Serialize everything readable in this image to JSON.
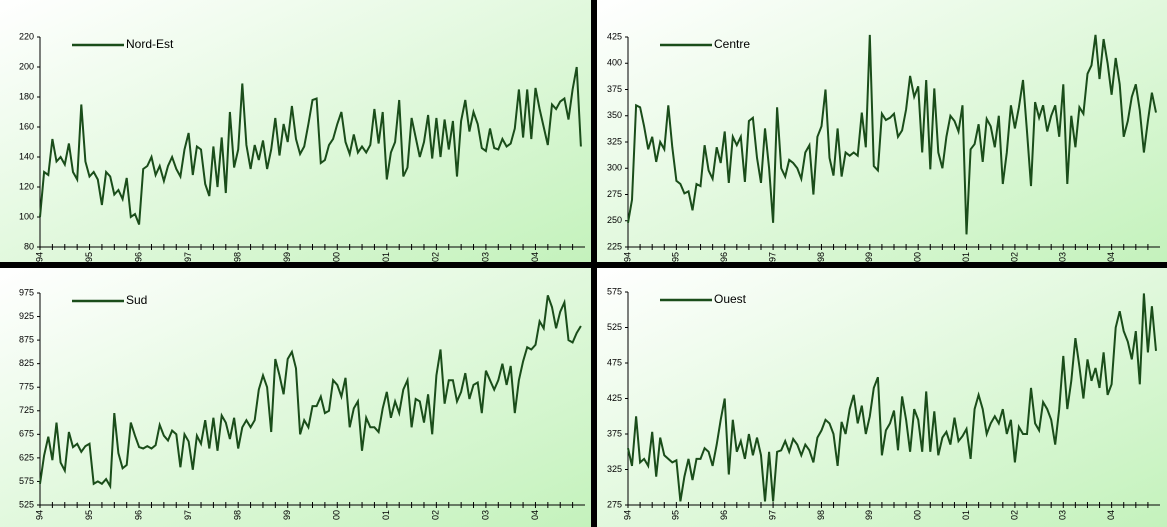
{
  "chart_data": [
    {
      "type": "line",
      "categories": [
        "94",
        null,
        null,
        null,
        null,
        null,
        null,
        null,
        null,
        null,
        null,
        null,
        "95",
        null,
        null,
        null,
        null,
        null,
        null,
        null,
        null,
        null,
        null,
        null,
        "96",
        null,
        null,
        null,
        null,
        null,
        null,
        null,
        null,
        null,
        null,
        null,
        "97",
        null,
        null,
        null,
        null,
        null,
        null,
        null,
        null,
        null,
        null,
        null,
        "98",
        null,
        null,
        null,
        null,
        null,
        null,
        null,
        null,
        null,
        null,
        null,
        "99",
        null,
        null,
        null,
        null,
        null,
        null,
        null,
        null,
        null,
        null,
        null,
        "00",
        null,
        null,
        null,
        null,
        null,
        null,
        null,
        null,
        null,
        null,
        null,
        "01",
        null,
        null,
        null,
        null,
        null,
        null,
        null,
        null,
        null,
        null,
        null,
        "02",
        null,
        null,
        null,
        null,
        null,
        null,
        null,
        null,
        null,
        null,
        null,
        "03",
        null,
        null,
        null,
        null,
        null,
        null,
        null,
        null,
        null,
        null,
        null,
        "04",
        null,
        null,
        null,
        null,
        null,
        null,
        null,
        null,
        null,
        null,
        null
      ],
      "series": [
        {
          "name": "Nord-Est",
          "color": "#1a4d1a",
          "values": [
            100,
            130,
            128,
            152,
            137,
            140,
            135,
            149,
            130,
            125,
            175,
            137,
            127,
            130,
            125,
            108,
            130,
            127,
            115,
            118,
            112,
            126,
            100,
            102,
            95,
            132,
            134,
            140,
            128,
            134,
            124,
            134,
            140,
            132,
            127,
            145,
            156,
            128,
            147,
            145,
            122,
            114,
            147,
            120,
            153,
            116,
            170,
            133,
            145,
            189,
            148,
            132,
            148,
            138,
            151,
            132,
            145,
            166,
            141,
            162,
            150,
            174,
            152,
            142,
            147,
            162,
            178,
            179,
            136,
            138,
            148,
            152,
            162,
            170,
            150,
            142,
            155,
            143,
            147,
            143,
            148,
            172,
            149,
            170,
            125,
            143,
            150,
            178,
            127,
            133,
            166,
            153,
            140,
            150,
            168,
            139,
            166,
            140,
            165,
            145,
            164,
            127,
            164,
            178,
            157,
            170,
            162,
            146,
            144,
            159,
            146,
            145,
            152,
            147,
            149,
            159,
            185,
            153,
            185,
            152,
            186,
            172,
            160,
            148,
            175,
            172,
            177,
            179,
            165,
            185,
            200,
            147
          ]
        }
      ],
      "ylim": [
        80,
        220
      ],
      "yticks": [
        80,
        100,
        120,
        140,
        160,
        180,
        200,
        220
      ]
    },
    {
      "type": "line",
      "categories": [
        "94",
        null,
        null,
        null,
        null,
        null,
        null,
        null,
        null,
        null,
        null,
        null,
        "95",
        null,
        null,
        null,
        null,
        null,
        null,
        null,
        null,
        null,
        null,
        null,
        "96",
        null,
        null,
        null,
        null,
        null,
        null,
        null,
        null,
        null,
        null,
        null,
        "97",
        null,
        null,
        null,
        null,
        null,
        null,
        null,
        null,
        null,
        null,
        null,
        "98",
        null,
        null,
        null,
        null,
        null,
        null,
        null,
        null,
        null,
        null,
        null,
        "99",
        null,
        null,
        null,
        null,
        null,
        null,
        null,
        null,
        null,
        null,
        null,
        "00",
        null,
        null,
        null,
        null,
        null,
        null,
        null,
        null,
        null,
        null,
        null,
        "01",
        null,
        null,
        null,
        null,
        null,
        null,
        null,
        null,
        null,
        null,
        null,
        "02",
        null,
        null,
        null,
        null,
        null,
        null,
        null,
        null,
        null,
        null,
        null,
        "03",
        null,
        null,
        null,
        null,
        null,
        null,
        null,
        null,
        null,
        null,
        null,
        "04",
        null,
        null,
        null,
        null,
        null,
        null,
        null,
        null,
        null,
        null,
        null
      ],
      "series": [
        {
          "name": "Centre",
          "color": "#1a4d1a",
          "values": [
            248,
            270,
            360,
            358,
            340,
            318,
            330,
            306,
            325,
            318,
            360,
            320,
            288,
            285,
            276,
            278,
            260,
            285,
            283,
            322,
            298,
            290,
            320,
            305,
            335,
            286,
            330,
            322,
            330,
            287,
            345,
            348,
            310,
            286,
            338,
            300,
            248,
            358,
            300,
            292,
            308,
            305,
            300,
            290,
            315,
            322,
            275,
            330,
            340,
            375,
            310,
            293,
            338,
            292,
            315,
            312,
            315,
            312,
            353,
            320,
            427,
            302,
            298,
            352,
            346,
            348,
            352,
            330,
            336,
            356,
            388,
            368,
            378,
            315,
            384,
            299,
            376,
            315,
            300,
            330,
            350,
            345,
            335,
            360,
            237,
            318,
            323,
            342,
            306,
            347,
            340,
            320,
            350,
            285,
            315,
            360,
            338,
            358,
            384,
            335,
            283,
            363,
            348,
            360,
            335,
            350,
            360,
            330,
            380,
            285,
            350,
            320,
            358,
            352,
            390,
            398,
            427,
            385,
            423,
            400,
            370,
            405,
            380,
            330,
            345,
            368,
            380,
            355,
            315,
            345,
            372,
            353
          ]
        }
      ],
      "ylim": [
        225,
        425
      ],
      "yticks": [
        225,
        250,
        275,
        300,
        325,
        350,
        375,
        400,
        425
      ]
    },
    {
      "type": "line",
      "categories": [
        "94",
        null,
        null,
        null,
        null,
        null,
        null,
        null,
        null,
        null,
        null,
        null,
        "95",
        null,
        null,
        null,
        null,
        null,
        null,
        null,
        null,
        null,
        null,
        null,
        "96",
        null,
        null,
        null,
        null,
        null,
        null,
        null,
        null,
        null,
        null,
        null,
        "97",
        null,
        null,
        null,
        null,
        null,
        null,
        null,
        null,
        null,
        null,
        null,
        "98",
        null,
        null,
        null,
        null,
        null,
        null,
        null,
        null,
        null,
        null,
        null,
        "99",
        null,
        null,
        null,
        null,
        null,
        null,
        null,
        null,
        null,
        null,
        null,
        "00",
        null,
        null,
        null,
        null,
        null,
        null,
        null,
        null,
        null,
        null,
        null,
        "01",
        null,
        null,
        null,
        null,
        null,
        null,
        null,
        null,
        null,
        null,
        null,
        "02",
        null,
        null,
        null,
        null,
        null,
        null,
        null,
        null,
        null,
        null,
        null,
        "03",
        null,
        null,
        null,
        null,
        null,
        null,
        null,
        null,
        null,
        null,
        null,
        "04",
        null,
        null,
        null,
        null,
        null,
        null,
        null,
        null,
        null,
        null,
        null
      ],
      "series": [
        {
          "name": "Sud",
          "color": "#1a4d1a",
          "values": [
            570,
            630,
            670,
            620,
            700,
            615,
            598,
            680,
            648,
            655,
            638,
            650,
            655,
            570,
            575,
            570,
            580,
            565,
            720,
            635,
            603,
            610,
            700,
            672,
            648,
            645,
            650,
            645,
            652,
            695,
            672,
            662,
            683,
            675,
            605,
            675,
            660,
            600,
            672,
            655,
            705,
            645,
            710,
            640,
            715,
            700,
            665,
            710,
            645,
            690,
            705,
            690,
            705,
            770,
            800,
            775,
            680,
            835,
            800,
            760,
            835,
            850,
            815,
            675,
            705,
            690,
            735,
            735,
            755,
            720,
            725,
            790,
            780,
            755,
            795,
            690,
            730,
            745,
            640,
            710,
            690,
            690,
            680,
            730,
            765,
            710,
            745,
            720,
            770,
            790,
            690,
            750,
            745,
            700,
            760,
            675,
            800,
            855,
            740,
            790,
            790,
            745,
            765,
            805,
            750,
            780,
            785,
            720,
            810,
            790,
            770,
            790,
            825,
            780,
            820,
            720,
            790,
            830,
            860,
            855,
            865,
            915,
            900,
            970,
            945,
            900,
            935,
            955,
            875,
            870,
            890,
            905
          ]
        }
      ],
      "ylim": [
        525,
        975
      ],
      "yticks": [
        525,
        575,
        625,
        675,
        725,
        775,
        825,
        875,
        925,
        975
      ]
    },
    {
      "type": "line",
      "categories": [
        "94",
        null,
        null,
        null,
        null,
        null,
        null,
        null,
        null,
        null,
        null,
        null,
        "95",
        null,
        null,
        null,
        null,
        null,
        null,
        null,
        null,
        null,
        null,
        null,
        "96",
        null,
        null,
        null,
        null,
        null,
        null,
        null,
        null,
        null,
        null,
        null,
        "97",
        null,
        null,
        null,
        null,
        null,
        null,
        null,
        null,
        null,
        null,
        null,
        "98",
        null,
        null,
        null,
        null,
        null,
        null,
        null,
        null,
        null,
        null,
        null,
        "99",
        null,
        null,
        null,
        null,
        null,
        null,
        null,
        null,
        null,
        null,
        null,
        "00",
        null,
        null,
        null,
        null,
        null,
        null,
        null,
        null,
        null,
        null,
        null,
        "01",
        null,
        null,
        null,
        null,
        null,
        null,
        null,
        null,
        null,
        null,
        null,
        "02",
        null,
        null,
        null,
        null,
        null,
        null,
        null,
        null,
        null,
        null,
        null,
        "03",
        null,
        null,
        null,
        null,
        null,
        null,
        null,
        null,
        null,
        null,
        null,
        "04",
        null,
        null,
        null,
        null,
        null,
        null,
        null,
        null,
        null,
        null,
        null
      ],
      "series": [
        {
          "name": "Ouest",
          "color": "#1a4d1a",
          "values": [
            355,
            330,
            400,
            335,
            340,
            330,
            378,
            315,
            370,
            345,
            340,
            335,
            338,
            280,
            315,
            340,
            310,
            340,
            340,
            355,
            350,
            330,
            360,
            395,
            425,
            318,
            395,
            350,
            365,
            340,
            375,
            345,
            370,
            345,
            280,
            350,
            280,
            350,
            352,
            365,
            350,
            368,
            360,
            345,
            360,
            352,
            335,
            370,
            380,
            395,
            390,
            375,
            330,
            392,
            375,
            410,
            430,
            390,
            415,
            375,
            400,
            440,
            455,
            345,
            380,
            390,
            408,
            352,
            428,
            395,
            350,
            410,
            395,
            350,
            435,
            350,
            407,
            345,
            370,
            378,
            360,
            398,
            365,
            372,
            382,
            340,
            410,
            430,
            410,
            375,
            390,
            400,
            390,
            410,
            375,
            395,
            335,
            385,
            375,
            375,
            440,
            390,
            380,
            420,
            410,
            395,
            360,
            410,
            485,
            410,
            450,
            510,
            470,
            425,
            480,
            450,
            468,
            440,
            490,
            430,
            445,
            525,
            548,
            520,
            505,
            480,
            520,
            445,
            573,
            490,
            555,
            492
          ]
        }
      ],
      "ylim": [
        275,
        575
      ],
      "yticks": [
        275,
        325,
        375,
        425,
        475,
        525,
        575
      ]
    }
  ]
}
